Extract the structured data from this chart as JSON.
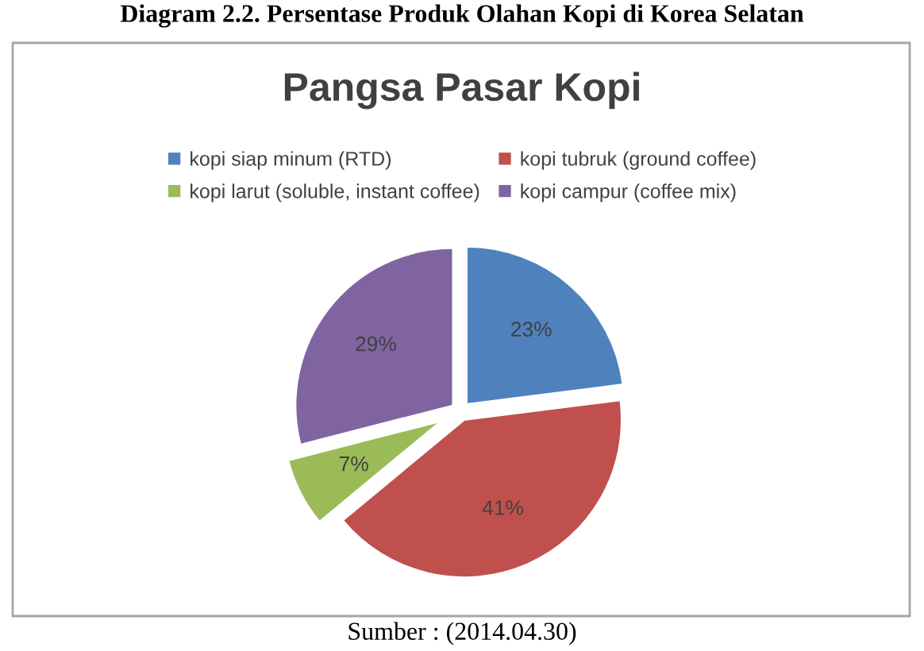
{
  "chart_data": {
    "type": "pie",
    "title": "Pangsa Pasar Kopi",
    "annotations": [
      "Diagram 2.2. Persentase Produk Olahan Kopi di Korea Selatan",
      "Sumber : (2014.04.30)"
    ],
    "categories": [
      "kopi siap minum (RTD)",
      "kopi tubruk (ground coffee)",
      "kopi larut (soluble, instant coffee)",
      "kopi campur (coffee mix)"
    ],
    "values": [
      23,
      41,
      7,
      29
    ],
    "value_labels": [
      "23%",
      "41%",
      "7%",
      "29%"
    ],
    "colors": [
      "#4f81bd",
      "#c0504d",
      "#9bbb59",
      "#8064a2"
    ],
    "legend": "top"
  }
}
